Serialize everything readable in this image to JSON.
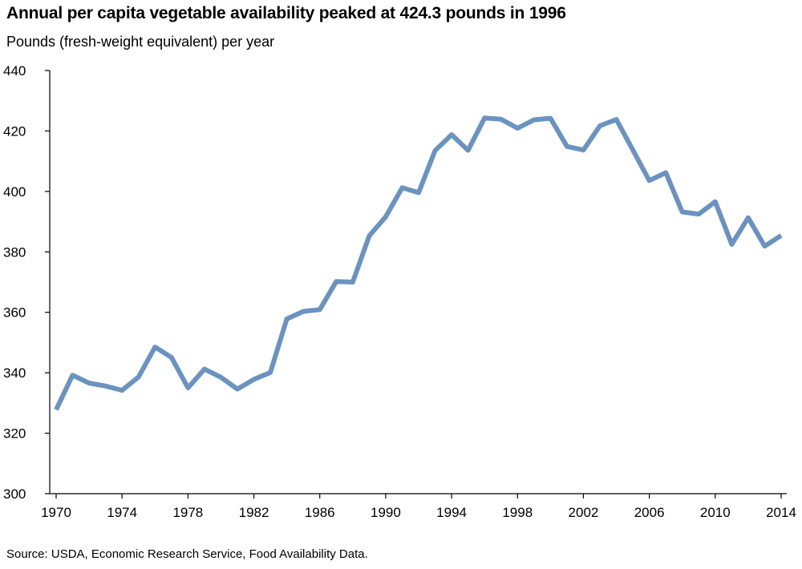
{
  "title": "Annual per capita vegetable availability peaked at 424.3 pounds in 1996",
  "subtitle": "Pounds (fresh-weight equivalent) per year",
  "source": "Source: USDA, Economic Research Service, Food Availability Data.",
  "chart_data": {
    "type": "line",
    "title": "Annual per capita vegetable availability peaked at 424.3 pounds in 1996",
    "ylabel": "Pounds (fresh-weight equivalent) per year",
    "xlabel": "",
    "ylim": [
      300,
      440
    ],
    "xlim": [
      1970,
      2014
    ],
    "grid": false,
    "line_color": "#6a93c1",
    "x_ticks": [
      "1970",
      "1974",
      "1978",
      "1982",
      "1986",
      "1990",
      "1994",
      "1998",
      "2002",
      "2006",
      "2010",
      "2014"
    ],
    "y_ticks": [
      "300",
      "320",
      "340",
      "360",
      "380",
      "400",
      "420",
      "440"
    ],
    "x": [
      1970,
      1971,
      1972,
      1973,
      1974,
      1975,
      1976,
      1977,
      1978,
      1979,
      1980,
      1981,
      1982,
      1983,
      1984,
      1985,
      1986,
      1987,
      1988,
      1989,
      1990,
      1991,
      1992,
      1993,
      1994,
      1995,
      1996,
      1997,
      1998,
      1999,
      2000,
      2001,
      2002,
      2003,
      2004,
      2005,
      2006,
      2007,
      2008,
      2009,
      2010,
      2011,
      2012,
      2013,
      2014
    ],
    "series": [
      {
        "values": [
          327.8,
          339.2,
          336.6,
          335.6,
          334.2,
          338.6,
          348.5,
          345.1,
          335.0,
          341.2,
          338.5,
          334.6,
          337.8,
          340.1,
          357.8,
          360.3,
          360.9,
          370.2,
          370.0,
          385.3,
          391.6,
          401.2,
          399.6,
          413.5,
          418.8,
          413.6,
          424.3,
          423.9,
          420.9,
          423.7,
          424.2,
          414.9,
          413.7,
          421.7,
          423.8,
          413.7,
          403.6,
          406.2,
          393.2,
          392.5,
          396.6,
          382.5,
          391.3,
          381.9,
          385.4
        ]
      }
    ]
  }
}
